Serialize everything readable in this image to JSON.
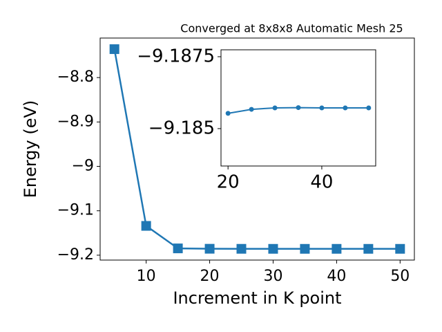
{
  "chart_data": [
    {
      "type": "line",
      "title": "Converged at 8x8x8 Automatic Mesh 25",
      "xlabel": "Increment in K point",
      "ylabel": "Energy (eV)",
      "x": [
        5,
        10,
        15,
        20,
        25,
        30,
        35,
        40,
        45,
        50
      ],
      "series": [
        {
          "name": "Energy",
          "color": "#1f77b4",
          "values": [
            -8.736,
            -9.134,
            -9.1847,
            -9.18553,
            -9.18567,
            -9.18572,
            -9.18573,
            -9.18572,
            -9.18572,
            -9.18572
          ]
        }
      ],
      "marker": "square",
      "xlim": [
        2.75,
        52.25
      ],
      "xticks": [
        10,
        20,
        30,
        40,
        50
      ],
      "ylim": [
        -9.211,
        -8.711
      ],
      "yticks": [
        -9.2,
        -9.1,
        -9.0,
        -8.9,
        -8.8
      ]
    },
    {
      "type": "line",
      "x": [
        20,
        25,
        30,
        35,
        40,
        45,
        50
      ],
      "series": [
        {
          "name": "Energy",
          "color": "#1f77b4",
          "values": [
            -9.18553,
            -9.18567,
            -9.18572,
            -9.18573,
            -9.18572,
            -9.18572,
            -9.18572
          ]
        }
      ],
      "marker": "circle",
      "xlim": [
        18.5,
        51.5
      ],
      "xticks": [
        20,
        40
      ],
      "ylim": [
        -9.1837,
        -9.18774
      ],
      "yticks": [
        -9.185,
        -9.1875
      ]
    }
  ]
}
